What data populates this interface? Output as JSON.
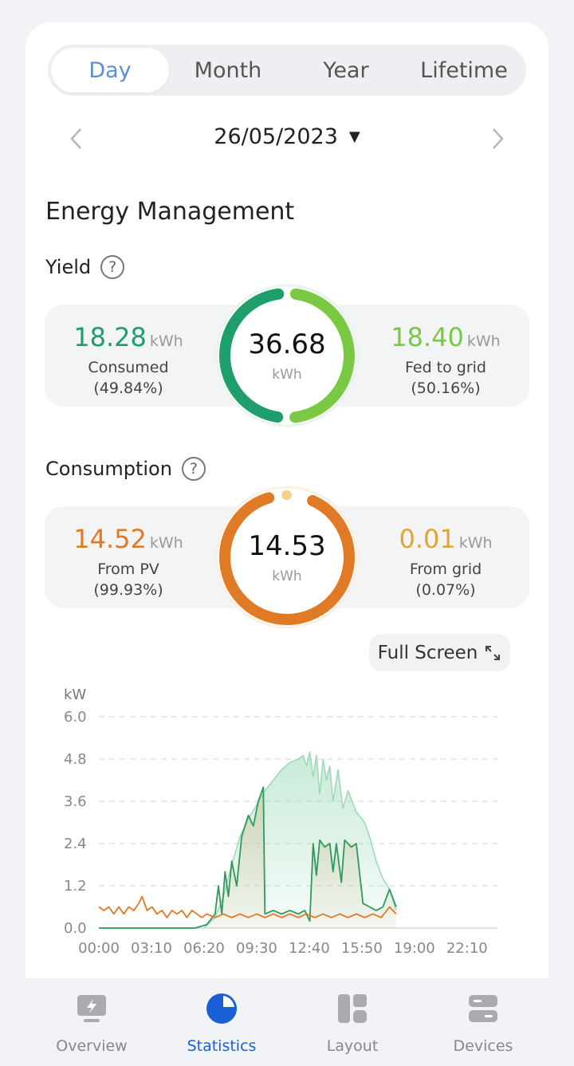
{
  "tabs": [
    {
      "label": "Day",
      "active": true
    },
    {
      "label": "Month",
      "active": false
    },
    {
      "label": "Year",
      "active": false
    },
    {
      "label": "Lifetime",
      "active": false
    }
  ],
  "date": "26/05/2023",
  "section_title": "Energy Management",
  "yield": {
    "label": "Yield",
    "total": "36.68",
    "unit": "kWh",
    "left": {
      "value": "18.28",
      "unit": "kWh",
      "label": "Consumed",
      "percent": "(49.84%)",
      "fraction": 0.4984,
      "color": "#1e9e6a"
    },
    "right": {
      "value": "18.40",
      "unit": "kWh",
      "label": "Fed to grid",
      "percent": "(50.16%)",
      "fraction": 0.5016,
      "color": "#7ac943"
    }
  },
  "consumption": {
    "label": "Consumption",
    "total": "14.53",
    "unit": "kWh",
    "left": {
      "value": "14.52",
      "unit": "kWh",
      "label": "From PV",
      "percent": "(99.93%)",
      "fraction": 0.9993,
      "color": "#e07a24"
    },
    "right": {
      "value": "0.01",
      "unit": "kWh",
      "label": "From grid",
      "percent": "(0.07%)",
      "fraction": 0.0007,
      "color": "#e2a532"
    }
  },
  "full_screen_label": "Full Screen",
  "chart_data": {
    "type": "area",
    "ylabel": "kW",
    "ylim": [
      0,
      6
    ],
    "yticks": [
      "0.0",
      "1.2",
      "2.4",
      "3.6",
      "4.8",
      "6.0"
    ],
    "xticks": [
      "00:00",
      "03:10",
      "06:20",
      "09:30",
      "12:40",
      "15:50",
      "19:00",
      "22:10"
    ],
    "grid": true,
    "series": [
      {
        "color": "#9ad9b8",
        "points": [
          [
            6.33,
            0.0
          ],
          [
            7.0,
            0.3
          ],
          [
            7.5,
            0.9
          ],
          [
            8.0,
            1.8
          ],
          [
            8.5,
            2.6
          ],
          [
            9.0,
            3.1
          ],
          [
            9.5,
            3.5
          ],
          [
            10.0,
            3.9
          ],
          [
            10.5,
            4.2
          ],
          [
            11.0,
            4.5
          ],
          [
            11.5,
            4.7
          ],
          [
            12.0,
            4.8
          ],
          [
            12.3,
            4.9
          ],
          [
            12.5,
            4.6
          ],
          [
            12.7,
            5.0
          ],
          [
            12.9,
            4.3
          ],
          [
            13.1,
            4.9
          ],
          [
            13.3,
            3.8
          ],
          [
            13.5,
            4.8
          ],
          [
            13.7,
            4.2
          ],
          [
            13.9,
            4.6
          ],
          [
            14.1,
            3.6
          ],
          [
            14.4,
            4.5
          ],
          [
            14.7,
            3.4
          ],
          [
            15.0,
            3.9
          ],
          [
            15.5,
            3.3
          ],
          [
            16.0,
            3.0
          ],
          [
            16.3,
            2.6
          ],
          [
            16.7,
            1.9
          ],
          [
            17.1,
            1.4
          ],
          [
            17.5,
            1.1
          ],
          [
            17.9,
            0.5
          ]
        ]
      },
      {
        "color": "#2e9a5a",
        "points": [
          [
            0.0,
            0.0
          ],
          [
            5.8,
            0.0
          ],
          [
            6.5,
            0.1
          ],
          [
            7.0,
            0.4
          ],
          [
            7.2,
            1.2
          ],
          [
            7.4,
            0.4
          ],
          [
            7.6,
            1.6
          ],
          [
            7.8,
            0.9
          ],
          [
            8.0,
            1.9
          ],
          [
            8.3,
            1.2
          ],
          [
            8.6,
            2.6
          ],
          [
            9.0,
            3.2
          ],
          [
            9.3,
            2.9
          ],
          [
            9.6,
            3.6
          ],
          [
            9.9,
            4.0
          ],
          [
            10.0,
            0.4
          ],
          [
            10.5,
            0.5
          ],
          [
            11.0,
            0.4
          ],
          [
            11.5,
            0.5
          ],
          [
            12.0,
            0.4
          ],
          [
            12.4,
            0.5
          ],
          [
            12.7,
            0.2
          ],
          [
            12.9,
            2.4
          ],
          [
            13.1,
            1.5
          ],
          [
            13.3,
            2.5
          ],
          [
            13.6,
            2.3
          ],
          [
            13.9,
            2.4
          ],
          [
            14.1,
            1.6
          ],
          [
            14.3,
            2.4
          ],
          [
            14.6,
            1.3
          ],
          [
            14.8,
            2.5
          ],
          [
            15.2,
            2.3
          ],
          [
            15.5,
            2.4
          ],
          [
            15.9,
            0.7
          ],
          [
            16.3,
            0.6
          ],
          [
            16.7,
            0.5
          ],
          [
            17.1,
            0.6
          ],
          [
            17.5,
            1.1
          ],
          [
            17.9,
            0.6
          ]
        ]
      },
      {
        "color": "#e07a24",
        "points": [
          [
            0.0,
            0.6
          ],
          [
            0.3,
            0.5
          ],
          [
            0.6,
            0.6
          ],
          [
            0.9,
            0.4
          ],
          [
            1.2,
            0.6
          ],
          [
            1.5,
            0.4
          ],
          [
            1.8,
            0.6
          ],
          [
            2.1,
            0.5
          ],
          [
            2.4,
            0.7
          ],
          [
            2.6,
            0.9
          ],
          [
            2.9,
            0.5
          ],
          [
            3.2,
            0.6
          ],
          [
            3.5,
            0.4
          ],
          [
            3.8,
            0.5
          ],
          [
            4.1,
            0.3
          ],
          [
            4.4,
            0.5
          ],
          [
            4.7,
            0.4
          ],
          [
            5.0,
            0.5
          ],
          [
            5.3,
            0.3
          ],
          [
            5.6,
            0.5
          ],
          [
            5.9,
            0.4
          ],
          [
            6.2,
            0.3
          ],
          [
            6.5,
            0.4
          ],
          [
            7.0,
            0.3
          ],
          [
            7.5,
            0.4
          ],
          [
            8.0,
            0.3
          ],
          [
            8.5,
            0.4
          ],
          [
            9.0,
            0.3
          ],
          [
            9.5,
            0.4
          ],
          [
            10.0,
            0.3
          ],
          [
            10.5,
            0.4
          ],
          [
            11.0,
            0.3
          ],
          [
            11.5,
            0.4
          ],
          [
            12.0,
            0.3
          ],
          [
            12.5,
            0.4
          ],
          [
            13.0,
            0.3
          ],
          [
            13.5,
            0.4
          ],
          [
            14.0,
            0.3
          ],
          [
            14.5,
            0.4
          ],
          [
            15.0,
            0.3
          ],
          [
            15.5,
            0.4
          ],
          [
            16.0,
            0.3
          ],
          [
            16.5,
            0.4
          ],
          [
            17.0,
            0.3
          ],
          [
            17.5,
            0.6
          ],
          [
            17.9,
            0.4
          ]
        ]
      }
    ]
  },
  "nav": [
    {
      "label": "Overview",
      "icon": "monitor-bolt-icon",
      "active": false
    },
    {
      "label": "Statistics",
      "icon": "pie-chart-icon",
      "active": true
    },
    {
      "label": "Layout",
      "icon": "layout-grid-icon",
      "active": false
    },
    {
      "label": "Devices",
      "icon": "devices-stack-icon",
      "active": false
    }
  ]
}
